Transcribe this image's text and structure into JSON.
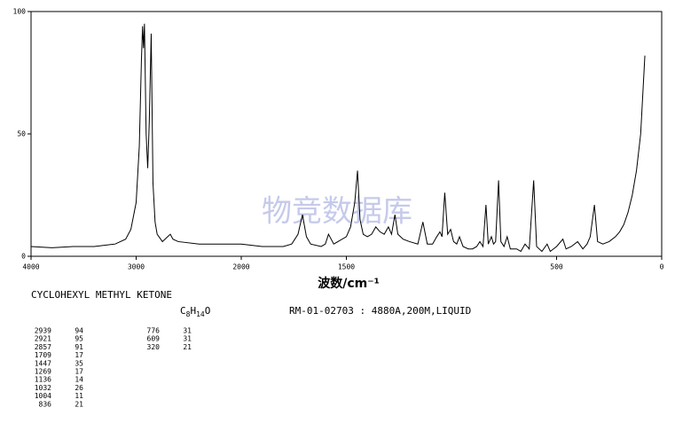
{
  "chart_data": {
    "type": "line",
    "x_label": "波数/cm⁻¹",
    "watermark": "物竞数据库",
    "title": "CYCLOHEXYL METHYL KETONE",
    "formula": [
      "C",
      "8",
      "H",
      "14",
      "O"
    ],
    "reference": "RM-01-02703 : 4880A,200M,LIQUID",
    "xlim": [
      4000,
      0
    ],
    "xticks": [
      4000,
      3000,
      2000,
      1500,
      500,
      0
    ],
    "xscale_break": 2000,
    "xscale_factor": 2,
    "ylim": [
      0,
      100
    ],
    "yticks": [
      0,
      50,
      100
    ],
    "color": "#000000",
    "x": [
      4000,
      3800,
      3600,
      3400,
      3200,
      3100,
      3050,
      3000,
      2970,
      2950,
      2939,
      2930,
      2921,
      2905,
      2890,
      2875,
      2857,
      2840,
      2820,
      2800,
      2750,
      2700,
      2675,
      2650,
      2600,
      2400,
      2200,
      2000,
      1900,
      1800,
      1760,
      1730,
      1709,
      1690,
      1670,
      1620,
      1600,
      1585,
      1560,
      1500,
      1480,
      1460,
      1447,
      1435,
      1420,
      1400,
      1380,
      1360,
      1340,
      1320,
      1300,
      1285,
      1269,
      1255,
      1230,
      1200,
      1160,
      1136,
      1115,
      1090,
      1070,
      1055,
      1045,
      1032,
      1018,
      1004,
      990,
      975,
      962,
      945,
      920,
      900,
      880,
      865,
      850,
      836,
      825,
      810,
      800,
      790,
      776,
      765,
      750,
      735,
      720,
      690,
      670,
      650,
      630,
      609,
      595,
      570,
      545,
      530,
      500,
      470,
      455,
      430,
      400,
      375,
      355,
      340,
      320,
      305,
      280,
      250,
      220,
      200,
      180,
      160,
      140,
      120,
      100,
      80
    ],
    "values": [
      4,
      3.5,
      4,
      4,
      5,
      7,
      11,
      22,
      45,
      80,
      94,
      85,
      95,
      50,
      36,
      55,
      91,
      30,
      14,
      9,
      6,
      8,
      9,
      7,
      6,
      5,
      5,
      5,
      4,
      4,
      5,
      9,
      17,
      8,
      5,
      4,
      5,
      9,
      5,
      8,
      12,
      22,
      35,
      15,
      9,
      8,
      9,
      12,
      10,
      9,
      12,
      9,
      17,
      9,
      7,
      6,
      5,
      14,
      5,
      5,
      8,
      10,
      8,
      26,
      9,
      11,
      6,
      5,
      8,
      4,
      3,
      3,
      4,
      6,
      4,
      21,
      5,
      8,
      5,
      6,
      31,
      6,
      4,
      8,
      3,
      3,
      2,
      5,
      3,
      31,
      4,
      2,
      5,
      2,
      4,
      7,
      3,
      4,
      6,
      3,
      5,
      8,
      21,
      6,
      5,
      6,
      8,
      10,
      13,
      18,
      25,
      35,
      50,
      82
    ],
    "peaks": [
      {
        "wavenumber": "2939",
        "intensity": "94"
      },
      {
        "wavenumber": "2921",
        "intensity": "95"
      },
      {
        "wavenumber": "2857",
        "intensity": "91"
      },
      {
        "wavenumber": "1709",
        "intensity": "17"
      },
      {
        "wavenumber": "1447",
        "intensity": "35"
      },
      {
        "wavenumber": "1269",
        "intensity": "17"
      },
      {
        "wavenumber": "1136",
        "intensity": "14"
      },
      {
        "wavenumber": "1032",
        "intensity": "26"
      },
      {
        "wavenumber": "1004",
        "intensity": "11"
      },
      {
        "wavenumber": "836",
        "intensity": "21"
      },
      {
        "wavenumber": "776",
        "intensity": "31"
      },
      {
        "wavenumber": "609",
        "intensity": "31"
      },
      {
        "wavenumber": "320",
        "intensity": "21"
      }
    ]
  }
}
